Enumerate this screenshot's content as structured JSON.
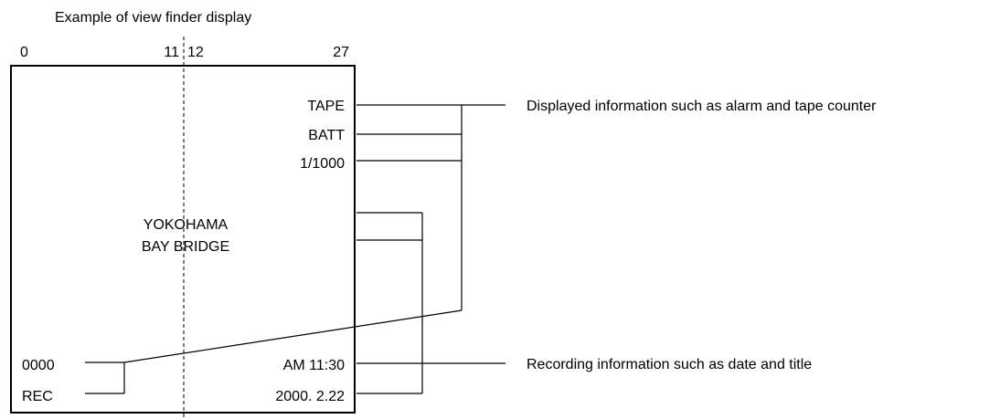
{
  "title": "Example of view finder display",
  "ruler": {
    "start": "0",
    "left_center": "11",
    "right_center": "12",
    "end": "27"
  },
  "display": {
    "right_top": [
      "TAPE",
      "BATT",
      "1/1000"
    ],
    "center_title": [
      "YOKOHAMA",
      "BAY BRIDGE"
    ],
    "bottom_left": [
      "0000",
      "REC"
    ],
    "bottom_right": [
      "AM 11:30",
      "2000. 2.22"
    ]
  },
  "callouts": {
    "alarm": "Displayed information such as alarm and tape counter",
    "recording": "Recording information such as date and title"
  }
}
